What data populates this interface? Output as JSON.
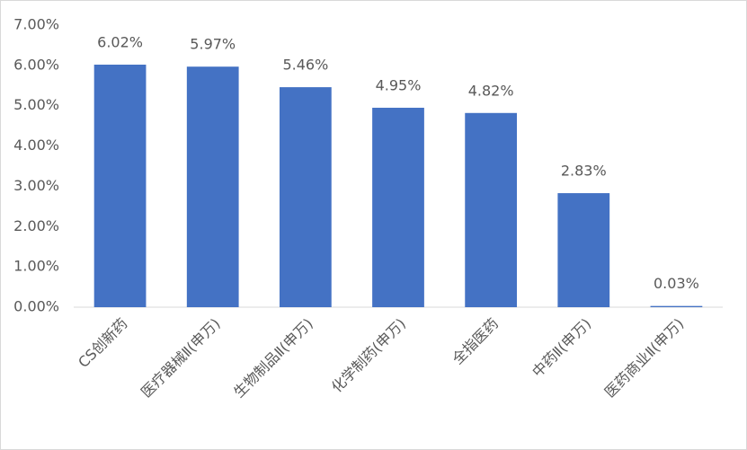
{
  "chart_data": {
    "type": "bar",
    "categories": [
      "CS创新药",
      "医疗器械Ⅱ(申万)",
      "生物制品Ⅱ(申万)",
      "化学制药(申万)",
      "全指医药",
      "中药Ⅱ(申万)",
      "医药商业Ⅱ(申万)"
    ],
    "values": [
      6.02,
      5.97,
      5.46,
      4.95,
      4.82,
      2.83,
      0.03
    ],
    "value_labels": [
      "6.02%",
      "5.97%",
      "5.46%",
      "4.95%",
      "4.82%",
      "2.83%",
      "0.03%"
    ],
    "color": "#4472c4",
    "ylim": [
      0,
      7
    ],
    "yticks": [
      {
        "value": 0,
        "label": "0.00%"
      },
      {
        "value": 1,
        "label": "1.00%"
      },
      {
        "value": 2,
        "label": "2.00%"
      },
      {
        "value": 3,
        "label": "3.00%"
      },
      {
        "value": 4,
        "label": "4.00%"
      },
      {
        "value": 5,
        "label": "5.00%"
      },
      {
        "value": 6,
        "label": "6.00%"
      },
      {
        "value": 7,
        "label": "7.00%"
      }
    ],
    "grid": false
  }
}
